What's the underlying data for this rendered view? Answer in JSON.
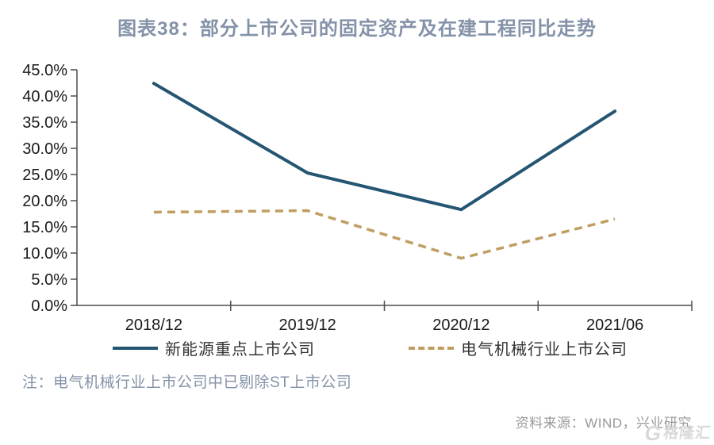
{
  "title": "图表38：部分上市公司的固定资产及在建工程同比走势",
  "note": "注：电气机械行业上市公司中已剔除ST上市公司",
  "source": "资料来源：WIND，兴业研究",
  "watermark": {
    "icon": "G",
    "text": "格隆汇"
  },
  "colors": {
    "title": "#8492A8",
    "note": "#8492A8",
    "source": "#999999",
    "axis": "#4D4D4D",
    "tickLabel": "#1A1A1A",
    "legendText": "#333333",
    "watermark": "#D9D9D9"
  },
  "chart_data": {
    "type": "line",
    "title": "图表38：部分上市公司的固定资产及在建工程同比走势",
    "categories": [
      "2018/12",
      "2019/12",
      "2020/12",
      "2021/06"
    ],
    "series": [
      {
        "name": "新能源重点上市公司",
        "style": "solid",
        "color": "#245572",
        "values": [
          42.4,
          25.3,
          18.3,
          37.1
        ]
      },
      {
        "name": "电气机械行业上市公司",
        "style": "dashed",
        "color": "#BF9E62",
        "values": [
          17.8,
          18.1,
          9.0,
          16.5
        ]
      }
    ],
    "ylim": [
      0,
      45
    ],
    "y_tick_step": 5,
    "y_tick_labels": [
      "0.0%",
      "5.0%",
      "10.0%",
      "15.0%",
      "20.0%",
      "25.0%",
      "30.0%",
      "35.0%",
      "40.0%",
      "45.0%"
    ],
    "xlabel": "",
    "ylabel": "",
    "grid": false,
    "legend_position": "bottom"
  }
}
